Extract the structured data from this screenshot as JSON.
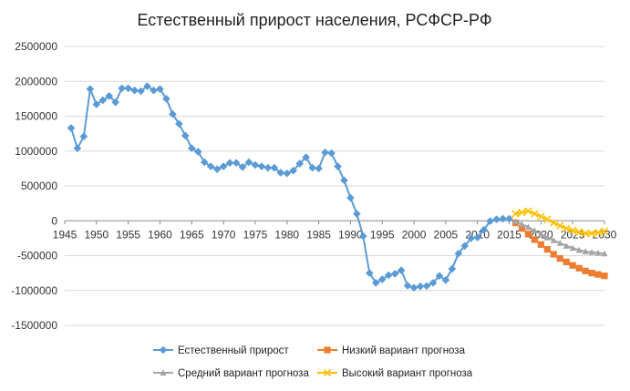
{
  "chart_data": {
    "type": "line",
    "title": "Естественный прирост населения, РСФСР-РФ",
    "xlabel": "",
    "ylabel": "",
    "xlim": [
      1945,
      2030
    ],
    "ylim": [
      -1500000,
      2500000
    ],
    "x_ticks": [
      1945,
      1950,
      1955,
      1960,
      1965,
      1970,
      1975,
      1980,
      1985,
      1990,
      1995,
      2000,
      2005,
      2010,
      2015,
      2020,
      2025,
      2030
    ],
    "y_ticks": [
      2500000,
      2000000,
      1500000,
      1000000,
      500000,
      0,
      -500000,
      -1000000,
      -1500000
    ],
    "grid": "horizontal",
    "legend_position": "bottom",
    "series": [
      {
        "name": "Естественный прирост",
        "color": "#5b9bd5",
        "marker": "diamond",
        "points": [
          [
            1946,
            1330000
          ],
          [
            1947,
            1040000
          ],
          [
            1948,
            1210000
          ],
          [
            1949,
            1890000
          ],
          [
            1950,
            1670000
          ],
          [
            1951,
            1730000
          ],
          [
            1952,
            1790000
          ],
          [
            1953,
            1700000
          ],
          [
            1954,
            1900000
          ],
          [
            1955,
            1900000
          ],
          [
            1956,
            1870000
          ],
          [
            1957,
            1860000
          ],
          [
            1958,
            1930000
          ],
          [
            1959,
            1870000
          ],
          [
            1960,
            1890000
          ],
          [
            1961,
            1750000
          ],
          [
            1962,
            1530000
          ],
          [
            1963,
            1390000
          ],
          [
            1964,
            1220000
          ],
          [
            1965,
            1040000
          ],
          [
            1966,
            990000
          ],
          [
            1967,
            840000
          ],
          [
            1968,
            780000
          ],
          [
            1969,
            740000
          ],
          [
            1970,
            780000
          ],
          [
            1971,
            830000
          ],
          [
            1972,
            830000
          ],
          [
            1973,
            770000
          ],
          [
            1974,
            840000
          ],
          [
            1975,
            800000
          ],
          [
            1976,
            780000
          ],
          [
            1977,
            760000
          ],
          [
            1978,
            760000
          ],
          [
            1979,
            690000
          ],
          [
            1980,
            680000
          ],
          [
            1981,
            720000
          ],
          [
            1982,
            820000
          ],
          [
            1983,
            910000
          ],
          [
            1984,
            760000
          ],
          [
            1985,
            750000
          ],
          [
            1986,
            980000
          ],
          [
            1987,
            970000
          ],
          [
            1988,
            780000
          ],
          [
            1989,
            580000
          ],
          [
            1990,
            330000
          ],
          [
            1991,
            100000
          ],
          [
            1992,
            -220000
          ],
          [
            1993,
            -750000
          ],
          [
            1994,
            -890000
          ],
          [
            1995,
            -840000
          ],
          [
            1996,
            -780000
          ],
          [
            1997,
            -760000
          ],
          [
            1998,
            -710000
          ],
          [
            1999,
            -930000
          ],
          [
            2000,
            -960000
          ],
          [
            2001,
            -940000
          ],
          [
            2002,
            -935000
          ],
          [
            2003,
            -890000
          ],
          [
            2004,
            -790000
          ],
          [
            2005,
            -850000
          ],
          [
            2006,
            -690000
          ],
          [
            2007,
            -470000
          ],
          [
            2008,
            -360000
          ],
          [
            2009,
            -250000
          ],
          [
            2010,
            -240000
          ],
          [
            2011,
            -130000
          ],
          [
            2012,
            -5000
          ],
          [
            2013,
            20000
          ],
          [
            2014,
            30000
          ],
          [
            2015,
            30000
          ]
        ]
      },
      {
        "name": "Низкий вариант прогноза",
        "color": "#ed7d31",
        "marker": "square",
        "points": [
          [
            2016,
            -30000
          ],
          [
            2017,
            -110000
          ],
          [
            2018,
            -190000
          ],
          [
            2019,
            -270000
          ],
          [
            2020,
            -340000
          ],
          [
            2021,
            -410000
          ],
          [
            2022,
            -480000
          ],
          [
            2023,
            -540000
          ],
          [
            2024,
            -590000
          ],
          [
            2025,
            -640000
          ],
          [
            2026,
            -680000
          ],
          [
            2027,
            -720000
          ],
          [
            2028,
            -750000
          ],
          [
            2029,
            -770000
          ],
          [
            2030,
            -790000
          ]
        ]
      },
      {
        "name": "Средний вариант прогноза",
        "color": "#a5a5a5",
        "marker": "triangle",
        "points": [
          [
            2016,
            -10000
          ],
          [
            2017,
            -50000
          ],
          [
            2018,
            -90000
          ],
          [
            2019,
            -140000
          ],
          [
            2020,
            -190000
          ],
          [
            2021,
            -240000
          ],
          [
            2022,
            -280000
          ],
          [
            2023,
            -320000
          ],
          [
            2024,
            -360000
          ],
          [
            2025,
            -390000
          ],
          [
            2026,
            -420000
          ],
          [
            2027,
            -440000
          ],
          [
            2028,
            -450000
          ],
          [
            2029,
            -460000
          ],
          [
            2030,
            -470000
          ]
        ]
      },
      {
        "name": "Высокий вариант прогноза",
        "color": "#ffc000",
        "marker": "x",
        "points": [
          [
            2016,
            100000
          ],
          [
            2017,
            120000
          ],
          [
            2018,
            140000
          ],
          [
            2019,
            100000
          ],
          [
            2020,
            60000
          ],
          [
            2021,
            20000
          ],
          [
            2022,
            -30000
          ],
          [
            2023,
            -70000
          ],
          [
            2024,
            -110000
          ],
          [
            2025,
            -140000
          ],
          [
            2026,
            -160000
          ],
          [
            2027,
            -180000
          ],
          [
            2028,
            -180000
          ],
          [
            2029,
            -170000
          ],
          [
            2030,
            -150000
          ]
        ]
      }
    ]
  }
}
